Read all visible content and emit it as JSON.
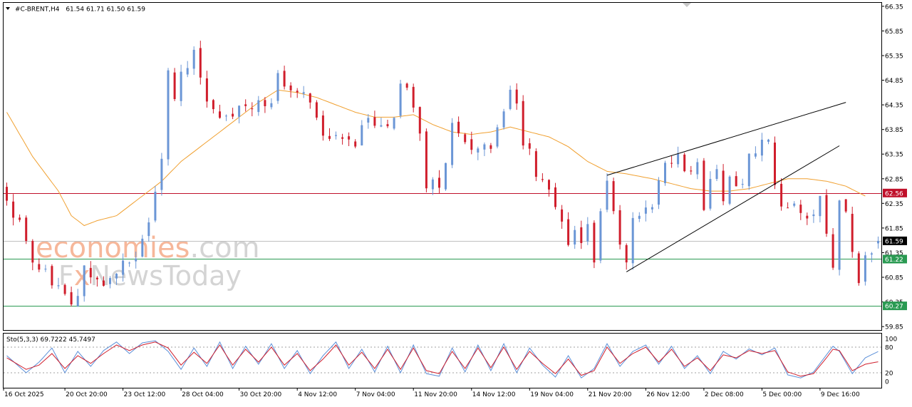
{
  "header": {
    "symbol": "#C-BRENT,H4",
    "ohlc": "61.54 61.71 61.50 61.59",
    "arrow_icon": "triangle-down-icon"
  },
  "watermark": {
    "part1": "economies",
    "part2": ".com",
    "part3_f": "F",
    "part3_x": "x",
    "part3_rest": "NewsToday"
  },
  "colors": {
    "bull": "#6b96d6",
    "bear": "#d01e2c",
    "ma": "#f0a030",
    "resistance": "#c0102a",
    "support": "#2a9a52",
    "stoch_main": "#5b8fd8",
    "stoch_signal": "#d01e2c",
    "current": "#000000",
    "watermark_orange": "#f6b79a",
    "watermark_gray": "#d4d4d4"
  },
  "indicator": {
    "label": "Sto(5,3,3) 69.7222 45.7497",
    "ticks": [
      "100",
      "80",
      "20",
      "0"
    ]
  },
  "chart_data": {
    "type": "candlestick",
    "instrument": "#C-BRENT",
    "timeframe": "H4",
    "y_ticks": [
      "66.35",
      "65.85",
      "65.35",
      "64.85",
      "64.35",
      "63.85",
      "63.35",
      "62.85",
      "62.35",
      "61.85",
      "61.35",
      "60.85",
      "60.35",
      "59.85"
    ],
    "ylim": [
      59.78,
      66.42
    ],
    "x_ticks": [
      "16 Oct 2025",
      "20 Oct 20:00",
      "23 Oct 12:00",
      "28 Oct 04:00",
      "30 Oct 20:00",
      "4 Nov 12:00",
      "7 Nov 04:00",
      "11 Nov 20:00",
      "14 Nov 12:00",
      "19 Nov 04:00",
      "21 Nov 20:00",
      "26 Nov 12:00",
      "2 Dec 08:00",
      "5 Dec 00:00",
      "9 Dec 16:00"
    ],
    "horizontal_levels": [
      {
        "value": 62.56,
        "label": "62.56",
        "color": "#c0102a"
      },
      {
        "value": 61.22,
        "label": "61.22",
        "color": "#2a9a52"
      },
      {
        "value": 60.27,
        "label": "60.27",
        "color": "#2a9a52"
      }
    ],
    "current_price": {
      "value": 61.59,
      "label": "61.59"
    },
    "price_path": [
      [
        0,
        62.55
      ],
      [
        5,
        61.0
      ],
      [
        8,
        60.6
      ],
      [
        10,
        60.4
      ],
      [
        12,
        60.9
      ],
      [
        15,
        60.7
      ],
      [
        18,
        61.0
      ],
      [
        20,
        61.1
      ],
      [
        22,
        61.8
      ],
      [
        23,
        62.5
      ],
      [
        24,
        63.3
      ],
      [
        25,
        65.1
      ],
      [
        26,
        64.6
      ],
      [
        27,
        65.2
      ],
      [
        29,
        65.4
      ],
      [
        31,
        64.5
      ],
      [
        33,
        63.9
      ],
      [
        35,
        64.2
      ],
      [
        37,
        64.5
      ],
      [
        40,
        64.2
      ],
      [
        42,
        64.8
      ],
      [
        45,
        64.6
      ],
      [
        47,
        64.2
      ],
      [
        50,
        63.8
      ],
      [
        53,
        63.5
      ],
      [
        55,
        63.9
      ],
      [
        57,
        64.0
      ],
      [
        59,
        63.8
      ],
      [
        60,
        64.2
      ],
      [
        61,
        64.9
      ],
      [
        63,
        64.4
      ],
      [
        64,
        63.9
      ],
      [
        65,
        62.5
      ],
      [
        67,
        62.8
      ],
      [
        69,
        63.9
      ],
      [
        71,
        63.8
      ],
      [
        72,
        63.5
      ],
      [
        75,
        63.5
      ],
      [
        78,
        64.7
      ],
      [
        80,
        63.7
      ],
      [
        82,
        63.0
      ],
      [
        83,
        62.7
      ],
      [
        85,
        62.2
      ],
      [
        87,
        61.5
      ],
      [
        88,
        61.8
      ],
      [
        89,
        61.5
      ],
      [
        90,
        61.9
      ],
      [
        91,
        61.2
      ],
      [
        93,
        62.8
      ],
      [
        94,
        62.2
      ],
      [
        95,
        61.6
      ],
      [
        96,
        61.3
      ],
      [
        97,
        62.0
      ],
      [
        98,
        61.9
      ],
      [
        100,
        62.3
      ],
      [
        101,
        62.8
      ],
      [
        103,
        63.2
      ],
      [
        104,
        63.35
      ],
      [
        105,
        63.1
      ],
      [
        107,
        63.0
      ],
      [
        108,
        62.4
      ],
      [
        109,
        62.7
      ],
      [
        110,
        63.0
      ],
      [
        111,
        62.6
      ],
      [
        113,
        62.8
      ],
      [
        114,
        62.9
      ],
      [
        115,
        63.4
      ],
      [
        116,
        63.5
      ],
      [
        117,
        63.8
      ],
      [
        118,
        63.6
      ],
      [
        119,
        62.6
      ],
      [
        120,
        62.2
      ],
      [
        122,
        62.3
      ],
      [
        124,
        61.9
      ],
      [
        126,
        62.3
      ],
      [
        127,
        61.8
      ],
      [
        128,
        61.2
      ],
      [
        129,
        62.3
      ],
      [
        130,
        62.0
      ],
      [
        131,
        61.2
      ],
      [
        132,
        60.9
      ],
      [
        133,
        61.4
      ],
      [
        134,
        61.5
      ],
      [
        135,
        61.59
      ]
    ],
    "ma_path": [
      [
        0,
        64.2
      ],
      [
        4,
        63.3
      ],
      [
        8,
        62.6
      ],
      [
        10,
        62.1
      ],
      [
        12,
        61.9
      ],
      [
        14,
        62.0
      ],
      [
        17,
        62.1
      ],
      [
        20,
        62.4
      ],
      [
        24,
        62.8
      ],
      [
        27,
        63.2
      ],
      [
        30,
        63.5
      ],
      [
        33,
        63.8
      ],
      [
        36,
        64.1
      ],
      [
        39,
        64.4
      ],
      [
        42,
        64.65
      ],
      [
        45,
        64.6
      ],
      [
        48,
        64.5
      ],
      [
        51,
        64.35
      ],
      [
        54,
        64.2
      ],
      [
        57,
        64.1
      ],
      [
        60,
        64.1
      ],
      [
        63,
        64.15
      ],
      [
        66,
        63.95
      ],
      [
        69,
        63.8
      ],
      [
        72,
        63.75
      ],
      [
        75,
        63.8
      ],
      [
        78,
        63.9
      ],
      [
        81,
        63.8
      ],
      [
        84,
        63.7
      ],
      [
        87,
        63.5
      ],
      [
        90,
        63.2
      ],
      [
        93,
        63.0
      ],
      [
        96,
        62.95
      ],
      [
        100,
        62.85
      ],
      [
        103,
        62.75
      ],
      [
        106,
        62.65
      ],
      [
        109,
        62.6
      ],
      [
        112,
        62.6
      ],
      [
        115,
        62.65
      ],
      [
        118,
        62.75
      ],
      [
        121,
        62.85
      ],
      [
        124,
        62.85
      ],
      [
        127,
        62.8
      ],
      [
        130,
        62.7
      ],
      [
        133,
        62.5
      ]
    ],
    "wedge": {
      "upper": [
        [
          93,
          62.92
        ],
        [
          130,
          64.4
        ]
      ],
      "lower": [
        [
          96,
          60.96
        ],
        [
          129,
          63.52
        ]
      ]
    },
    "stochastic": {
      "name": "Sto(5,3,3)",
      "main": 69.7222,
      "signal": 45.7497,
      "ylim": [
        0,
        100
      ],
      "levels": [
        80,
        20
      ],
      "main_path": [
        [
          0,
          60
        ],
        [
          3,
          20
        ],
        [
          5,
          45
        ],
        [
          7,
          78
        ],
        [
          9,
          20
        ],
        [
          11,
          70
        ],
        [
          13,
          35
        ],
        [
          15,
          72
        ],
        [
          17,
          92
        ],
        [
          19,
          65
        ],
        [
          21,
          90
        ],
        [
          23,
          95
        ],
        [
          25,
          70
        ],
        [
          27,
          28
        ],
        [
          29,
          78
        ],
        [
          31,
          35
        ],
        [
          33,
          92
        ],
        [
          35,
          30
        ],
        [
          37,
          82
        ],
        [
          39,
          40
        ],
        [
          41,
          88
        ],
        [
          43,
          30
        ],
        [
          45,
          72
        ],
        [
          47,
          18
        ],
        [
          49,
          60
        ],
        [
          51,
          92
        ],
        [
          53,
          30
        ],
        [
          55,
          75
        ],
        [
          57,
          22
        ],
        [
          59,
          82
        ],
        [
          61,
          20
        ],
        [
          63,
          85
        ],
        [
          65,
          18
        ],
        [
          67,
          12
        ],
        [
          69,
          78
        ],
        [
          71,
          22
        ],
        [
          73,
          85
        ],
        [
          75,
          25
        ],
        [
          77,
          88
        ],
        [
          79,
          20
        ],
        [
          81,
          78
        ],
        [
          83,
          38
        ],
        [
          85,
          10
        ],
        [
          87,
          60
        ],
        [
          89,
          8
        ],
        [
          91,
          30
        ],
        [
          93,
          88
        ],
        [
          95,
          35
        ],
        [
          97,
          70
        ],
        [
          99,
          85
        ],
        [
          101,
          40
        ],
        [
          103,
          82
        ],
        [
          105,
          30
        ],
        [
          107,
          60
        ],
        [
          109,
          18
        ],
        [
          111,
          70
        ],
        [
          113,
          52
        ],
        [
          115,
          76
        ],
        [
          117,
          62
        ],
        [
          119,
          78
        ],
        [
          121,
          15
        ],
        [
          123,
          8
        ],
        [
          125,
          22
        ],
        [
          127,
          62
        ],
        [
          128,
          82
        ],
        [
          129,
          70
        ],
        [
          131,
          18
        ],
        [
          133,
          55
        ],
        [
          135,
          69.72
        ]
      ],
      "signal_path": [
        [
          0,
          55
        ],
        [
          3,
          28
        ],
        [
          5,
          38
        ],
        [
          7,
          65
        ],
        [
          9,
          30
        ],
        [
          11,
          60
        ],
        [
          13,
          42
        ],
        [
          15,
          65
        ],
        [
          17,
          85
        ],
        [
          19,
          72
        ],
        [
          21,
          85
        ],
        [
          23,
          92
        ],
        [
          25,
          78
        ],
        [
          27,
          38
        ],
        [
          29,
          68
        ],
        [
          31,
          42
        ],
        [
          33,
          85
        ],
        [
          35,
          38
        ],
        [
          37,
          75
        ],
        [
          39,
          45
        ],
        [
          41,
          80
        ],
        [
          43,
          38
        ],
        [
          45,
          65
        ],
        [
          47,
          25
        ],
        [
          49,
          52
        ],
        [
          51,
          85
        ],
        [
          53,
          38
        ],
        [
          55,
          68
        ],
        [
          57,
          30
        ],
        [
          59,
          75
        ],
        [
          61,
          28
        ],
        [
          63,
          78
        ],
        [
          65,
          25
        ],
        [
          67,
          18
        ],
        [
          69,
          70
        ],
        [
          71,
          30
        ],
        [
          73,
          78
        ],
        [
          75,
          32
        ],
        [
          77,
          80
        ],
        [
          79,
          28
        ],
        [
          81,
          70
        ],
        [
          83,
          42
        ],
        [
          85,
          18
        ],
        [
          87,
          52
        ],
        [
          89,
          14
        ],
        [
          91,
          25
        ],
        [
          93,
          80
        ],
        [
          95,
          42
        ],
        [
          97,
          65
        ],
        [
          99,
          80
        ],
        [
          101,
          45
        ],
        [
          103,
          75
        ],
        [
          105,
          35
        ],
        [
          107,
          55
        ],
        [
          109,
          25
        ],
        [
          111,
          62
        ],
        [
          113,
          55
        ],
        [
          115,
          72
        ],
        [
          117,
          65
        ],
        [
          119,
          72
        ],
        [
          121,
          22
        ],
        [
          123,
          12
        ],
        [
          125,
          18
        ],
        [
          127,
          55
        ],
        [
          128,
          75
        ],
        [
          129,
          72
        ],
        [
          131,
          25
        ],
        [
          133,
          40
        ],
        [
          135,
          45.75
        ]
      ]
    }
  }
}
